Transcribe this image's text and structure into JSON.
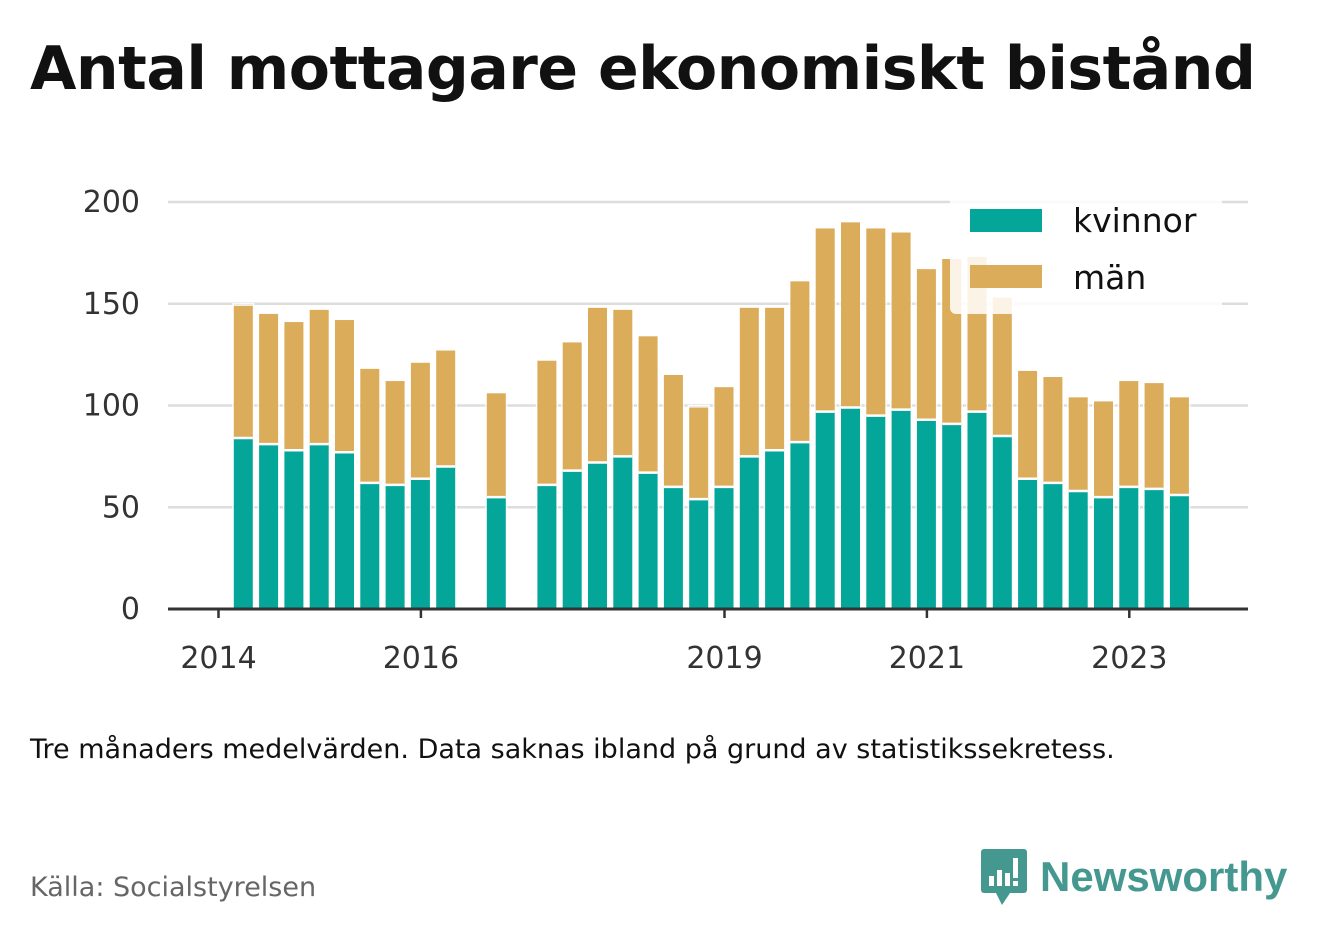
{
  "title": "Antal mottagare ekonomiskt bistånd",
  "note": "Tre månaders medelvärden. Data saknas ibland på grund av statistikssekretess.",
  "source": "Källa: Socialstyrelsen",
  "brand": "Newsworthy",
  "colors": {
    "kvinnor": "#04a69a",
    "man": "#dbac5a",
    "grid": "#dddddd",
    "axis": "#333333",
    "brand": "#45988f"
  },
  "chart_data": {
    "type": "bar",
    "stacked": true,
    "title": "Antal mottagare ekonomiskt bistånd",
    "xlabel": "",
    "ylabel": "",
    "ylim": [
      0,
      200
    ],
    "yticks": [
      0,
      50,
      100,
      150,
      200
    ],
    "grid": true,
    "legend_position": "top-right",
    "xticks": [
      {
        "label": "2014",
        "at": "2014-Q1"
      },
      {
        "label": "2016",
        "at": "2016-Q1"
      },
      {
        "label": "2019",
        "at": "2019-Q1"
      },
      {
        "label": "2021",
        "at": "2021-Q1"
      },
      {
        "label": "2023",
        "at": "2023-Q1"
      }
    ],
    "categories": [
      "2014-Q2",
      "2014-Q3",
      "2014-Q4",
      "2015-Q1",
      "2015-Q2",
      "2015-Q3",
      "2015-Q4",
      "2016-Q1",
      "2016-Q2",
      "2016-Q3",
      "2016-Q4",
      "2017-Q1",
      "2017-Q2",
      "2017-Q3",
      "2017-Q4",
      "2018-Q1",
      "2018-Q2",
      "2018-Q3",
      "2018-Q4",
      "2019-Q1",
      "2019-Q2",
      "2019-Q3",
      "2019-Q4",
      "2020-Q1",
      "2020-Q2",
      "2020-Q3",
      "2020-Q4",
      "2021-Q1",
      "2021-Q2",
      "2021-Q3",
      "2021-Q4",
      "2022-Q1",
      "2022-Q2",
      "2022-Q3",
      "2022-Q4",
      "2023-Q1",
      "2023-Q2",
      "2023-Q3"
    ],
    "series": [
      {
        "name": "kvinnor",
        "values": [
          84,
          81,
          78,
          81,
          77,
          62,
          61,
          64,
          70,
          null,
          55,
          null,
          61,
          68,
          72,
          75,
          67,
          60,
          54,
          60,
          75,
          78,
          82,
          97,
          99,
          95,
          98,
          93,
          91,
          97,
          85,
          64,
          62,
          58,
          55,
          60,
          59,
          56
        ]
      },
      {
        "name": "män",
        "values": [
          65,
          64,
          63,
          66,
          65,
          56,
          51,
          57,
          57,
          null,
          51,
          null,
          61,
          63,
          76,
          72,
          67,
          55,
          45,
          49,
          73,
          70,
          79,
          90,
          91,
          92,
          87,
          74,
          81,
          76,
          68,
          53,
          52,
          46,
          47,
          52,
          52,
          48
        ]
      }
    ]
  }
}
